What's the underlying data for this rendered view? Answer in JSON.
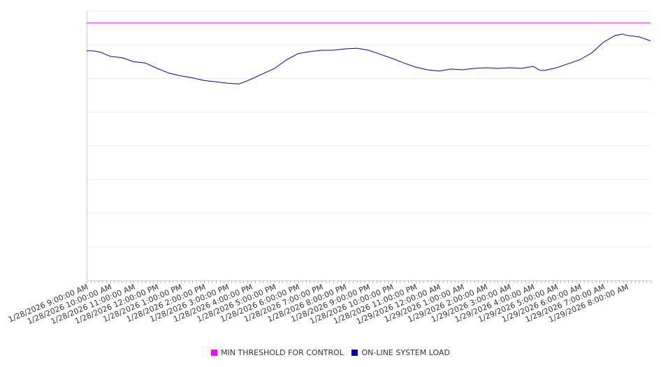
{
  "chart_data": {
    "type": "line",
    "title": "",
    "xlabel": "",
    "ylabel": "",
    "ylim": [
      0,
      8
    ],
    "grid": true,
    "legend_position": "bottom-center",
    "x_ticks": [
      "1/28/2026 9:00:00 AM",
      "1/28/2026 10:00:00 AM",
      "1/28/2026 11:00:00 AM",
      "1/28/2026 12:00:00 PM",
      "1/28/2026 1:00:00 PM",
      "1/28/2026 2:00:00 PM",
      "1/28/2026 3:00:00 PM",
      "1/28/2026 4:00:00 PM",
      "1/28/2026 5:00:00 PM",
      "1/28/2026 6:00:00 PM",
      "1/28/2026 7:00:00 PM",
      "1/28/2026 8:00:00 PM",
      "1/28/2026 9:00:00 PM",
      "1/28/2026 10:00:00 PM",
      "1/28/2026 11:00:00 PM",
      "1/29/2026 12:00:00 AM",
      "1/29/2026 1:00:00 AM",
      "1/29/2026 2:00:00 AM",
      "1/29/2026 3:00:00 AM",
      "1/29/2026 4:00:00 AM",
      "1/29/2026 5:00:00 AM",
      "1/29/2026 6:00:00 AM",
      "1/29/2026 7:00:00 AM",
      "1/29/2026 8:00:00 AM"
    ],
    "hours_span": 24,
    "series": [
      {
        "name": "MIN THRESHOLD FOR CONTROL",
        "color": "#ff00ff",
        "points": [
          [
            0,
            7.65
          ],
          [
            24,
            7.65
          ]
        ]
      },
      {
        "name": "ON-LINE SYSTEM LOAD",
        "color": "#0000cc",
        "points": [
          [
            0,
            6.82
          ],
          [
            0.3,
            6.82
          ],
          [
            0.6,
            6.78
          ],
          [
            1.0,
            6.66
          ],
          [
            1.5,
            6.62
          ],
          [
            2.0,
            6.5
          ],
          [
            2.5,
            6.46
          ],
          [
            3.0,
            6.3
          ],
          [
            3.5,
            6.16
          ],
          [
            4.0,
            6.08
          ],
          [
            4.5,
            6.02
          ],
          [
            5.0,
            5.94
          ],
          [
            5.5,
            5.9
          ],
          [
            6.0,
            5.86
          ],
          [
            6.5,
            5.84
          ],
          [
            7.0,
            5.98
          ],
          [
            7.5,
            6.14
          ],
          [
            8.0,
            6.3
          ],
          [
            8.5,
            6.55
          ],
          [
            9.0,
            6.74
          ],
          [
            9.5,
            6.8
          ],
          [
            10.0,
            6.84
          ],
          [
            10.5,
            6.84
          ],
          [
            11.0,
            6.88
          ],
          [
            11.5,
            6.9
          ],
          [
            12.0,
            6.84
          ],
          [
            12.5,
            6.72
          ],
          [
            13.0,
            6.6
          ],
          [
            13.5,
            6.46
          ],
          [
            14.0,
            6.34
          ],
          [
            14.5,
            6.26
          ],
          [
            15.0,
            6.22
          ],
          [
            15.5,
            6.28
          ],
          [
            16.0,
            6.26
          ],
          [
            16.5,
            6.3
          ],
          [
            17.0,
            6.32
          ],
          [
            17.5,
            6.3
          ],
          [
            18.0,
            6.32
          ],
          [
            18.5,
            6.3
          ],
          [
            19.0,
            6.36
          ],
          [
            19.3,
            6.24
          ],
          [
            19.5,
            6.24
          ],
          [
            20.0,
            6.32
          ],
          [
            20.5,
            6.44
          ],
          [
            21.0,
            6.56
          ],
          [
            21.5,
            6.76
          ],
          [
            22.0,
            7.08
          ],
          [
            22.5,
            7.28
          ],
          [
            22.8,
            7.32
          ],
          [
            23.0,
            7.28
          ],
          [
            23.5,
            7.24
          ],
          [
            24.0,
            7.12
          ]
        ]
      }
    ]
  }
}
